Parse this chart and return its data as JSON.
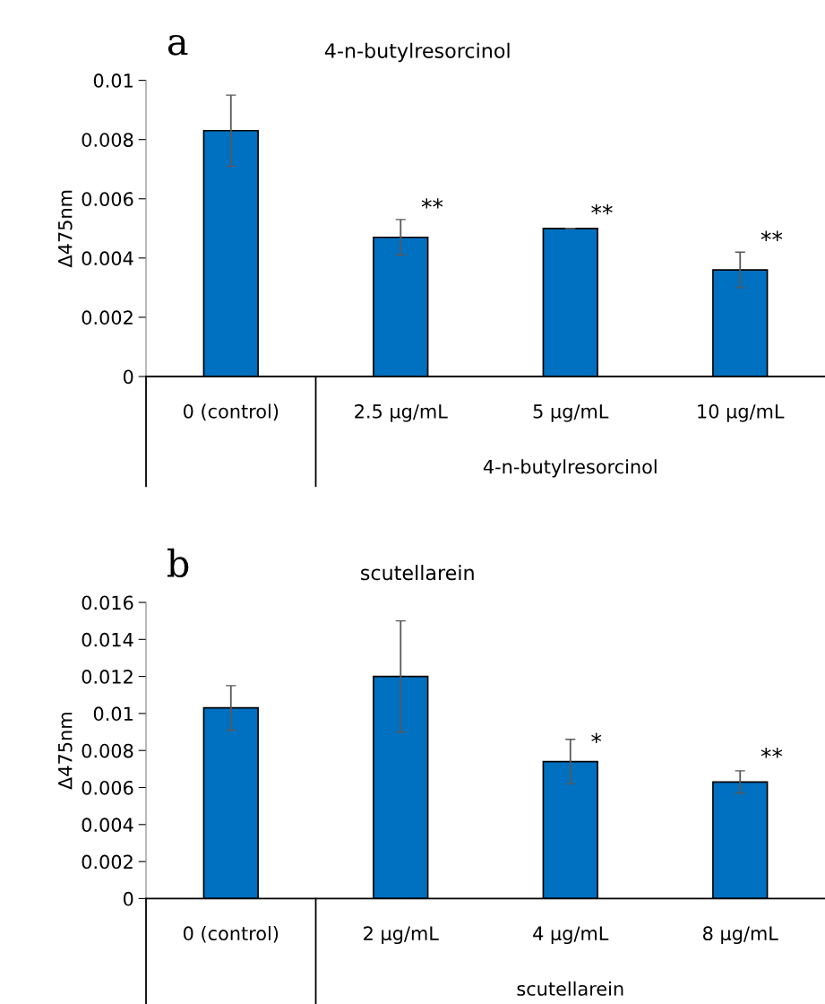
{
  "chart_data": [
    {
      "type": "bar",
      "title": "4-n-butylresorcinol",
      "ylabel": "Δ475nm",
      "categories": [
        "0 (control)",
        "2.5 μg/mL",
        "5 μg/mL",
        "10 μg/mL"
      ],
      "values": [
        0.0083,
        0.0047,
        0.005,
        0.0036
      ],
      "errors": [
        0.0012,
        0.0006,
        0,
        0.0006
      ],
      "color": "#0070c0",
      "ylim": [
        0,
        0.01
      ],
      "yticks": [
        0,
        0.002,
        0.004,
        0.006,
        0.008,
        0.01
      ],
      "grid": false,
      "legend": false,
      "annotations": [
        "a",
        "4-n-butylresorcinol",
        {
          "text": "**",
          "x": "2.5 μg/mL",
          "y": 0.0053
        },
        {
          "text": "**",
          "x": "5 μg/mL",
          "y": 0.0051
        },
        {
          "text": "**",
          "x": "10 μg/mL",
          "y": 0.0042
        }
      ]
    },
    {
      "type": "bar",
      "title": "scutellarein",
      "ylabel": "Δ475nm",
      "categories": [
        "0 (control)",
        "2 μg/mL",
        "4 μg/mL",
        "8 μg/mL"
      ],
      "values": [
        0.0103,
        0.012,
        0.0074,
        0.0063
      ],
      "errors": [
        0.0012,
        0.003,
        0.0012,
        0.0006
      ],
      "color": "#0070c0",
      "ylim": [
        0,
        0.016
      ],
      "yticks": [
        0,
        0.002,
        0.004,
        0.006,
        0.008,
        0.01,
        0.012,
        0.014,
        0.016
      ],
      "grid": false,
      "legend": false,
      "annotations": [
        "b",
        "scutellarein",
        {
          "text": "*",
          "x": "4 μg/mL",
          "y": 0.0078
        },
        {
          "text": "**",
          "x": "8 μg/mL",
          "y": 0.007
        }
      ]
    }
  ]
}
